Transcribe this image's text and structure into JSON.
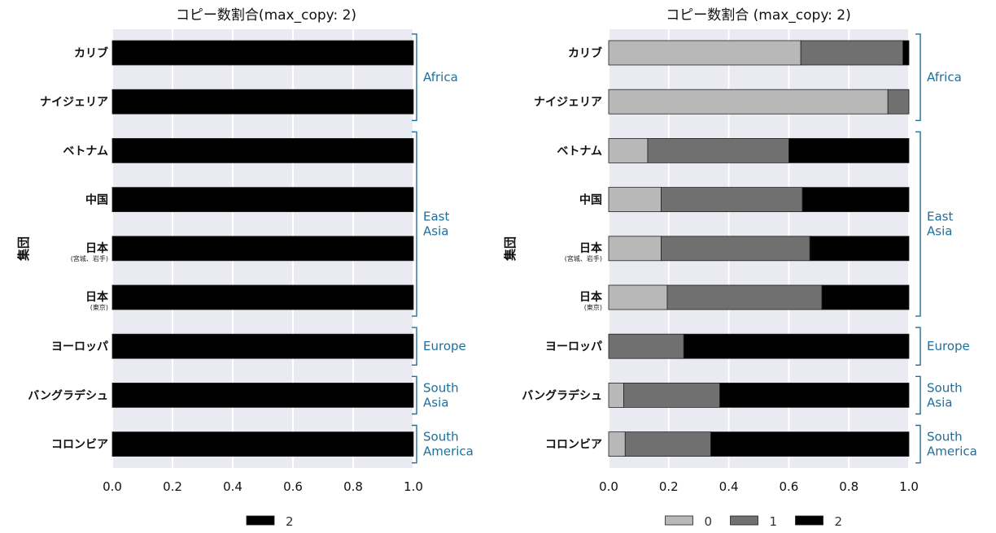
{
  "chart_data": [
    {
      "type": "bar",
      "orientation": "horizontal",
      "stacked": true,
      "title": "コピー数割合(max_copy: 2)",
      "ylabel": "集団",
      "xlabel": "",
      "xlim": [
        0,
        1
      ],
      "xticks": [
        "0.0",
        "0.2",
        "0.4",
        "0.6",
        "0.8",
        "1.0"
      ],
      "grid": true,
      "legend_position": "bottom",
      "categories": [
        {
          "label": "カリブ",
          "sub": ""
        },
        {
          "label": "ナイジェリア",
          "sub": ""
        },
        {
          "label": "ベトナム",
          "sub": ""
        },
        {
          "label": "中国",
          "sub": ""
        },
        {
          "label": "日本",
          "sub": "(宮城、岩手)"
        },
        {
          "label": "日本",
          "sub": "(東京)"
        },
        {
          "label": "ヨーロッパ",
          "sub": ""
        },
        {
          "label": "バングラデシュ",
          "sub": ""
        },
        {
          "label": "コロンビア",
          "sub": ""
        }
      ],
      "series": [
        {
          "name": "2",
          "color": "#000000",
          "values": [
            1,
            1,
            1,
            1,
            1,
            1,
            1,
            1,
            1
          ]
        }
      ],
      "groups": [
        {
          "label": "Africa",
          "from": 0,
          "to": 1
        },
        {
          "label": "East Asia",
          "from": 2,
          "to": 5
        },
        {
          "label": "Europe",
          "from": 6,
          "to": 6
        },
        {
          "label": "South Asia",
          "from": 7,
          "to": 7
        },
        {
          "label": "South America",
          "from": 8,
          "to": 8
        }
      ]
    },
    {
      "type": "bar",
      "orientation": "horizontal",
      "stacked": true,
      "title": "コピー数割合  (max_copy: 2)",
      "ylabel": "集団",
      "xlabel": "",
      "xlim": [
        0,
        1
      ],
      "xticks": [
        "0.0",
        "0.2",
        "0.4",
        "0.6",
        "0.8",
        "1.0"
      ],
      "grid": true,
      "legend_position": "bottom",
      "categories": [
        {
          "label": "カリブ",
          "sub": ""
        },
        {
          "label": "ナイジェリア",
          "sub": ""
        },
        {
          "label": "ベトナム",
          "sub": ""
        },
        {
          "label": "中国",
          "sub": ""
        },
        {
          "label": "日本",
          "sub": "(宮城、岩手)"
        },
        {
          "label": "日本",
          "sub": "(東京)"
        },
        {
          "label": "ヨーロッパ",
          "sub": ""
        },
        {
          "label": "バングラデシュ",
          "sub": ""
        },
        {
          "label": "コロンビア",
          "sub": ""
        }
      ],
      "series": [
        {
          "name": "0",
          "color": "#b8b8b8",
          "values": [
            0.64,
            0.93,
            0.13,
            0.175,
            0.175,
            0.195,
            0.0,
            0.05,
            0.055
          ]
        },
        {
          "name": "1",
          "color": "#707070",
          "values": [
            0.34,
            0.07,
            0.47,
            0.47,
            0.495,
            0.515,
            0.25,
            0.32,
            0.285
          ]
        },
        {
          "name": "2",
          "color": "#000000",
          "values": [
            0.02,
            0.0,
            0.4,
            0.355,
            0.33,
            0.29,
            0.75,
            0.63,
            0.66
          ]
        }
      ],
      "groups": [
        {
          "label": "Africa",
          "from": 0,
          "to": 1
        },
        {
          "label": "East Asia",
          "from": 2,
          "to": 5
        },
        {
          "label": "Europe",
          "from": 6,
          "to": 6
        },
        {
          "label": "South Asia",
          "from": 7,
          "to": 7
        },
        {
          "label": "South America",
          "from": 8,
          "to": 8
        }
      ]
    }
  ]
}
